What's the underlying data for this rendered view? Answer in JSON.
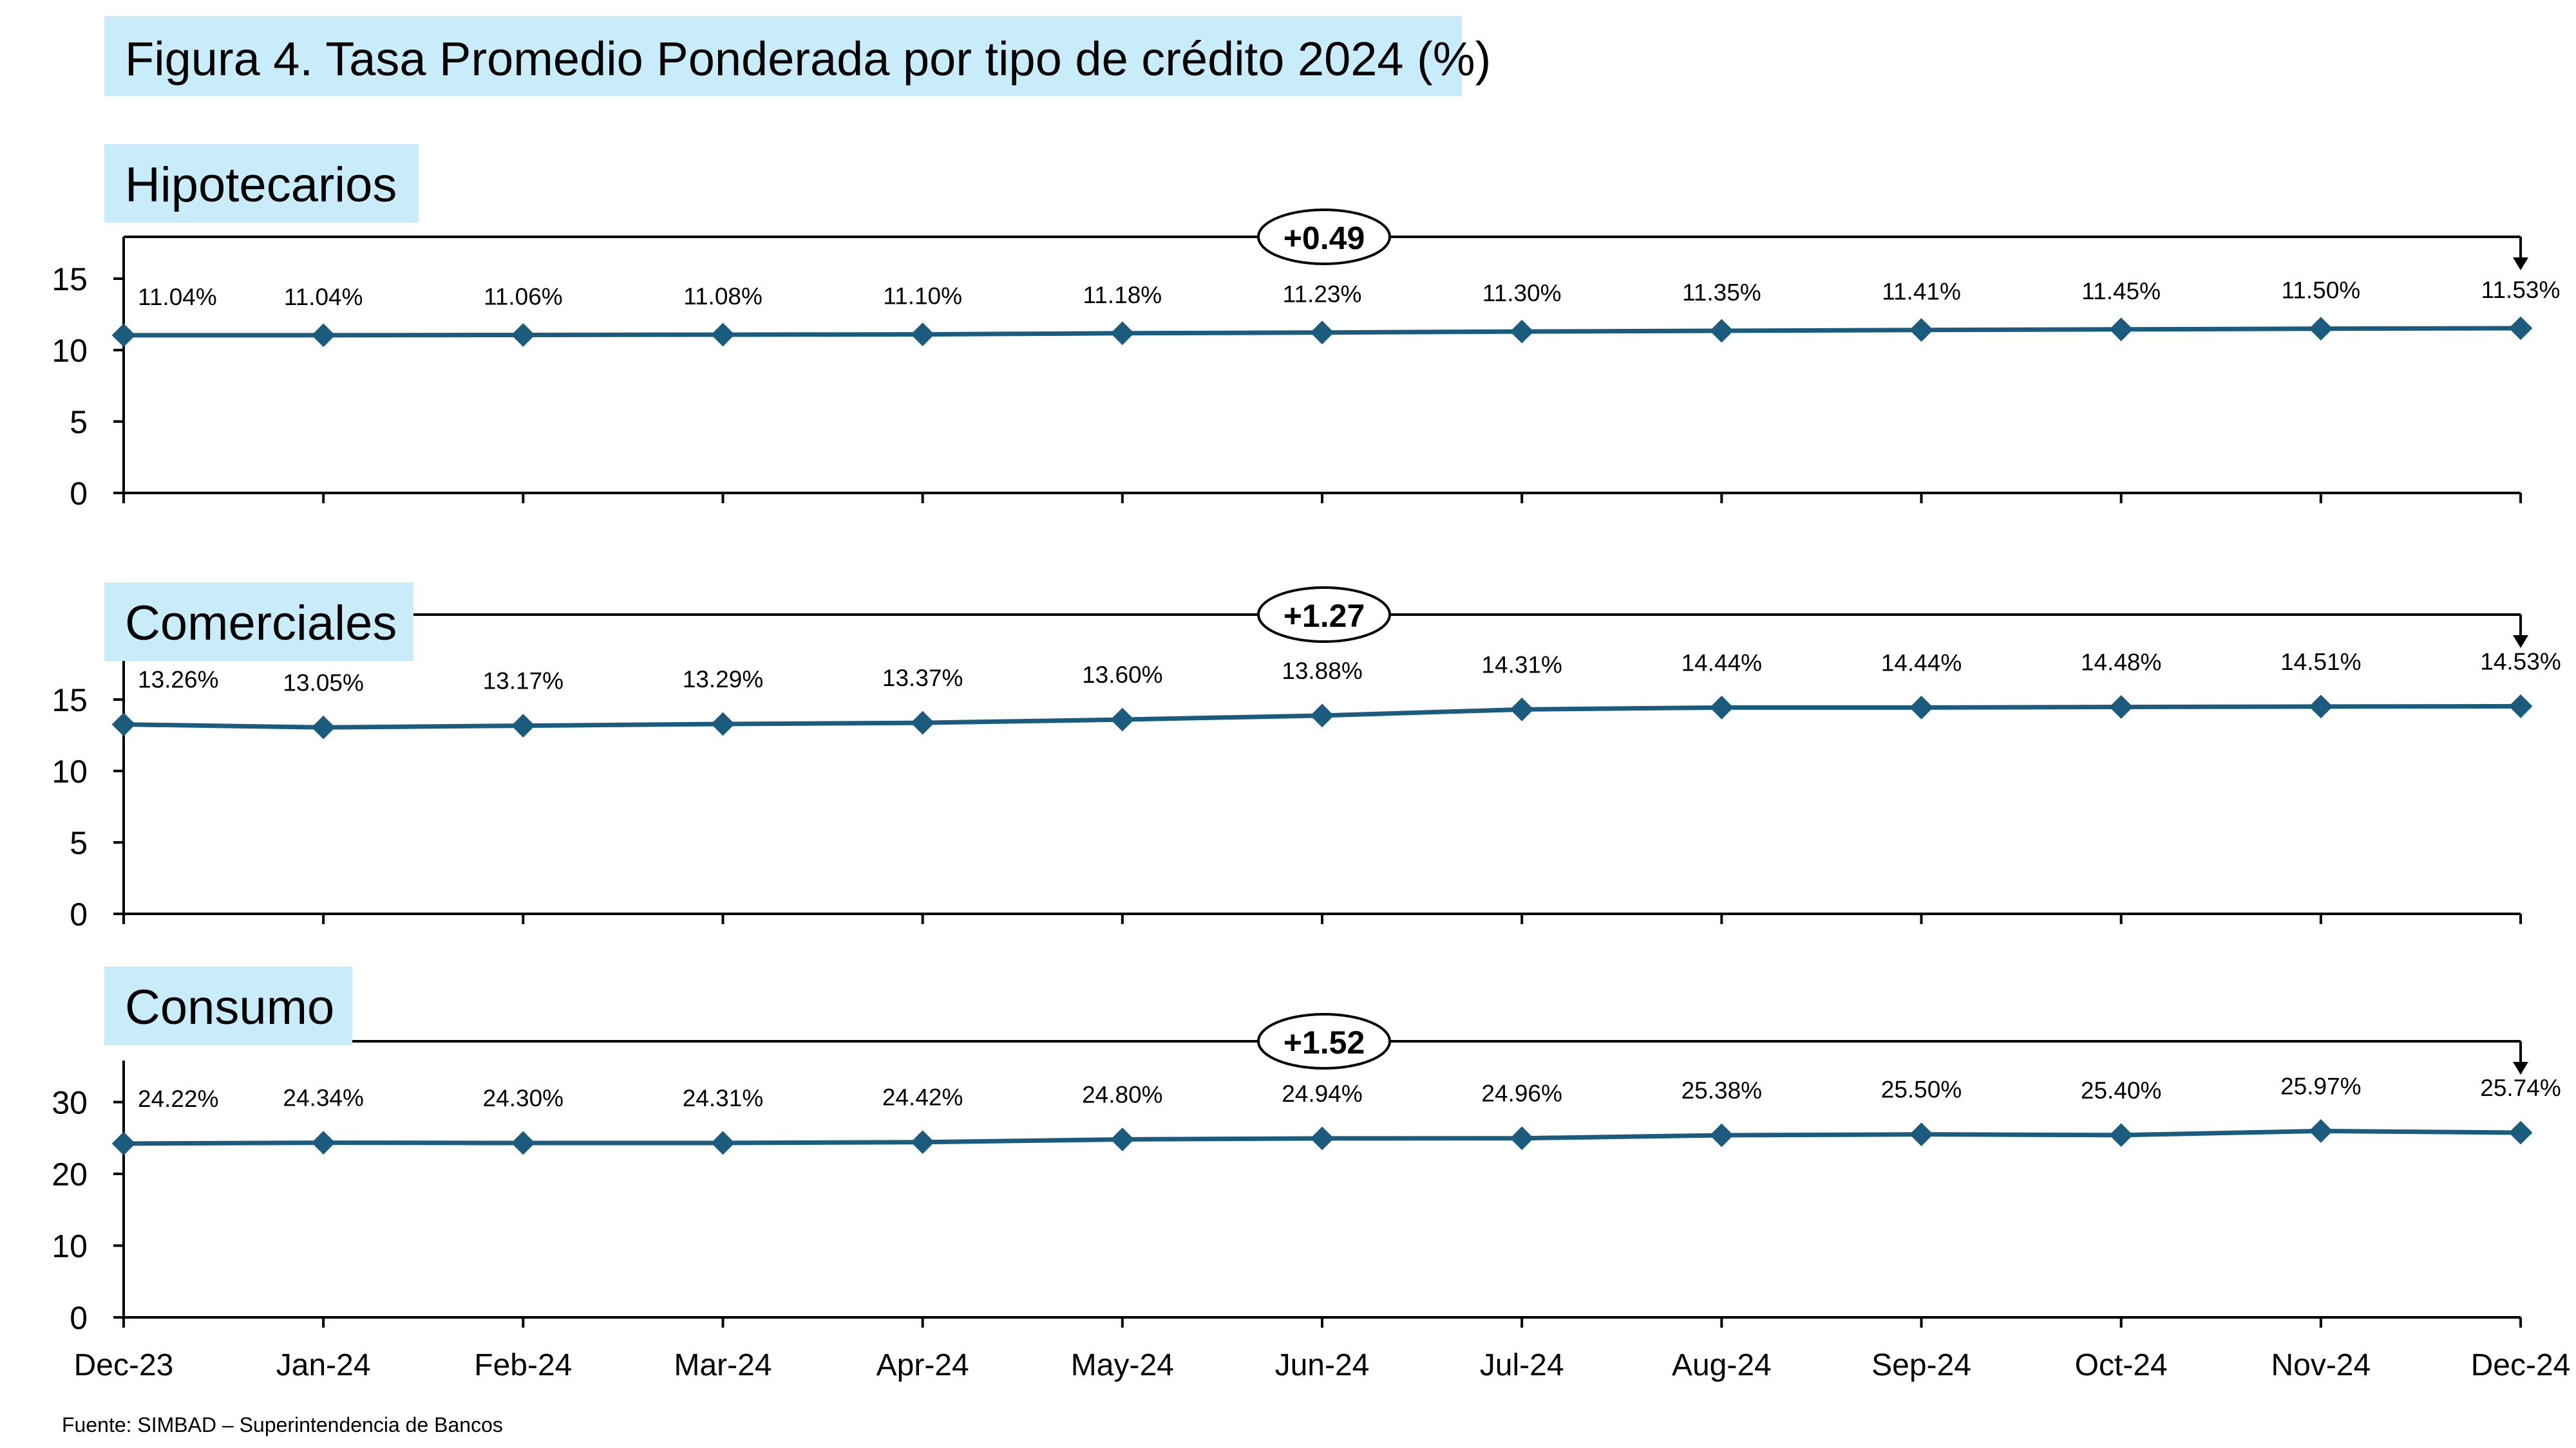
{
  "title": "Figura 4. Tasa Promedio Ponderada por tipo de crédito 2024 (%)",
  "source": "Fuente: SIMBAD – Superintendencia de Bancos",
  "colors": {
    "line": "#1b5b7e",
    "title_bg": "#c9ecfb",
    "axis": "#000000"
  },
  "chart_data": [
    {
      "type": "line",
      "title": "Hipotecarios",
      "categories": [
        "Dec-23",
        "Jan-24",
        "Feb-24",
        "Mar-24",
        "Apr-24",
        "May-24",
        "Jun-24",
        "Jul-24",
        "Aug-24",
        "Sep-24",
        "Oct-24",
        "Nov-24",
        "Dec-24"
      ],
      "values": [
        11.04,
        11.04,
        11.06,
        11.08,
        11.1,
        11.18,
        11.23,
        11.3,
        11.35,
        11.41,
        11.45,
        11.5,
        11.53
      ],
      "data_labels": [
        "11.04%",
        "11.04%",
        "11.06%",
        "11.08%",
        "11.10%",
        "11.18%",
        "11.23%",
        "11.30%",
        "11.35%",
        "11.41%",
        "11.45%",
        "11.50%",
        "11.53%"
      ],
      "yticks": [
        "0",
        "5",
        "10",
        "15"
      ],
      "ylim": [
        0,
        17
      ],
      "change_label": "+0.49",
      "grid": false,
      "legend": "none"
    },
    {
      "type": "line",
      "title": "Comerciales",
      "categories": [
        "Dec-23",
        "Jan-24",
        "Feb-24",
        "Mar-24",
        "Apr-24",
        "May-24",
        "Jun-24",
        "Jul-24",
        "Aug-24",
        "Sep-24",
        "Oct-24",
        "Nov-24",
        "Dec-24"
      ],
      "values": [
        13.26,
        13.05,
        13.17,
        13.29,
        13.37,
        13.6,
        13.88,
        14.31,
        14.44,
        14.44,
        14.48,
        14.51,
        14.53
      ],
      "data_labels": [
        "13.26%",
        "13.05%",
        "13.17%",
        "13.29%",
        "13.37%",
        "13.60%",
        "13.88%",
        "14.31%",
        "14.44%",
        "14.44%",
        "14.48%",
        "14.51%",
        "14.53%"
      ],
      "yticks": [
        "0",
        "5",
        "10",
        "15"
      ],
      "ylim": [
        0,
        17
      ],
      "change_label": "+1.27",
      "grid": false,
      "legend": "none"
    },
    {
      "type": "line",
      "title": "Consumo",
      "categories": [
        "Dec-23",
        "Jan-24",
        "Feb-24",
        "Mar-24",
        "Apr-24",
        "May-24",
        "Jun-24",
        "Jul-24",
        "Aug-24",
        "Sep-24",
        "Oct-24",
        "Nov-24",
        "Dec-24"
      ],
      "values": [
        24.22,
        24.34,
        24.3,
        24.31,
        24.42,
        24.8,
        24.94,
        24.96,
        25.38,
        25.5,
        25.4,
        25.97,
        25.74
      ],
      "data_labels": [
        "24.22%",
        "24.34%",
        "24.30%",
        "24.31%",
        "24.42%",
        "24.80%",
        "24.94%",
        "24.96%",
        "25.38%",
        "25.50%",
        "25.40%",
        "25.97%",
        "25.74%"
      ],
      "yticks": [
        "0",
        "10",
        "20",
        "30"
      ],
      "ylim": [
        0,
        35
      ],
      "change_label": "+1.52",
      "grid": false,
      "legend": "none"
    }
  ]
}
